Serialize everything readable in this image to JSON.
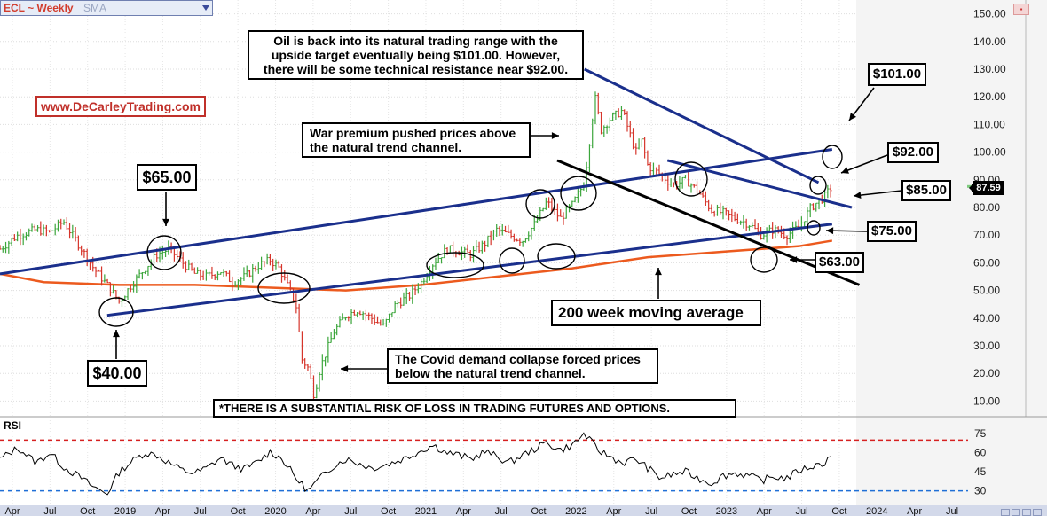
{
  "header": {
    "symbol": "ECL ~ Weekly",
    "indicator": "SMA",
    "url": "www.DeCarleyTrading.com",
    "rsi_label": "RSI",
    "last_price": "87.59"
  },
  "annotations": {
    "intro": [
      "Oil is back into its natural trading range with the",
      "upside target eventually being $101.00. However,",
      "there will be some technical resistance near $92.00."
    ],
    "war": [
      "War premium pushed prices above",
      "the natural trend channel."
    ],
    "covid": [
      "The Covid demand collapse forced prices",
      "below the natural trend channel."
    ],
    "ma": "200 week moving average",
    "risk": "*THERE IS A SUBSTANTIAL RISK OF LOSS IN TRADING FUTURES AND OPTIONS."
  },
  "price_labels": {
    "p65": "$65.00",
    "p40": "$40.00",
    "p101": "$101.00",
    "p92": "$92.00",
    "p85": "$85.00",
    "p75": "$75.00",
    "p63": "$63.00"
  },
  "colors": {
    "up_bar": "#3ca63c",
    "down_bar": "#d6352b",
    "trend_line": "#1a2f8c",
    "moving_average": "#ec5a1e",
    "counter_trend": "#000000",
    "rsi_upper": "#d62020",
    "rsi_lower": "#1f6fd6"
  },
  "chart_data": [
    {
      "type": "line",
      "title": "ECL ~ Weekly",
      "y_axis": {
        "ticks": [
          10,
          20,
          30,
          40,
          50,
          60,
          70,
          80,
          90,
          100,
          110,
          120,
          130,
          140,
          150
        ],
        "range": [
          5,
          155
        ]
      },
      "x_ticks": [
        "Apr",
        "Jul",
        "Oct",
        "2019",
        "Apr",
        "Jul",
        "Oct",
        "2020",
        "Apr",
        "Jul",
        "Oct",
        "2021",
        "Apr",
        "Jul",
        "Oct",
        "2022",
        "Apr",
        "Jul",
        "Oct",
        "2023",
        "Apr",
        "Jul",
        "Oct",
        "2024",
        "Apr",
        "Jul"
      ],
      "x_range": [
        2018.21,
        2024.62
      ],
      "series": [
        {
          "name": "price",
          "style": "weekly-bars",
          "x": [
            2018.21,
            2018.33,
            2018.45,
            2018.54,
            2018.63,
            2018.75,
            2018.83,
            2018.92,
            2019.0,
            2019.08,
            2019.17,
            2019.25,
            2019.33,
            2019.42,
            2019.5,
            2019.58,
            2019.67,
            2019.75,
            2019.83,
            2019.92,
            2020.0,
            2020.06,
            2020.12,
            2020.17,
            2020.21,
            2020.25,
            2020.29,
            2020.33,
            2020.42,
            2020.5,
            2020.58,
            2020.67,
            2020.75,
            2020.83,
            2020.92,
            2021.0,
            2021.08,
            2021.17,
            2021.25,
            2021.33,
            2021.42,
            2021.5,
            2021.58,
            2021.67,
            2021.75,
            2021.83,
            2021.92,
            2022.0,
            2022.08,
            2022.15,
            2022.19,
            2022.25,
            2022.33,
            2022.42,
            2022.46,
            2022.5,
            2022.58,
            2022.67,
            2022.75,
            2022.83,
            2022.92,
            2023.0,
            2023.08,
            2023.17,
            2023.25,
            2023.33,
            2023.42,
            2023.5,
            2023.58,
            2023.67,
            2023.72
          ],
          "y": [
            65,
            70,
            72,
            71,
            75,
            65,
            58,
            52,
            46,
            52,
            58,
            63,
            65,
            60,
            56,
            55,
            57,
            53,
            55,
            59,
            61,
            58,
            51,
            45,
            25,
            22,
            12,
            22,
            35,
            41,
            43,
            40,
            37,
            45,
            48,
            53,
            60,
            65,
            64,
            63,
            67,
            72,
            70,
            68,
            74,
            82,
            76,
            81,
            89,
            120,
            108,
            112,
            115,
            100,
            104,
            95,
            92,
            88,
            90,
            86,
            79,
            78,
            76,
            74,
            70,
            72,
            70,
            73,
            80,
            84,
            87.59
          ]
        },
        {
          "name": "200 week moving average",
          "x": [
            2018.21,
            2018.5,
            2019.0,
            2019.5,
            2020.0,
            2020.5,
            2021.0,
            2021.5,
            2022.0,
            2022.5,
            2023.0,
            2023.5,
            2023.72
          ],
          "y": [
            56,
            53,
            52,
            52,
            51,
            50,
            52,
            55,
            58,
            62,
            64,
            66,
            68
          ]
        },
        {
          "name": "RSI",
          "axis": "rsi",
          "ticks": [
            30,
            45,
            60,
            75
          ],
          "levels": [
            70,
            30
          ],
          "x": [
            2018.21,
            2018.33,
            2018.45,
            2018.54,
            2018.63,
            2018.75,
            2018.83,
            2018.92,
            2019.0,
            2019.08,
            2019.17,
            2019.25,
            2019.33,
            2019.42,
            2019.5,
            2019.58,
            2019.67,
            2019.75,
            2019.83,
            2019.92,
            2020.0,
            2020.08,
            2020.17,
            2020.25,
            2020.33,
            2020.42,
            2020.5,
            2020.58,
            2020.67,
            2020.75,
            2020.83,
            2020.92,
            2021.0,
            2021.08,
            2021.17,
            2021.25,
            2021.33,
            2021.42,
            2021.5,
            2021.58,
            2021.67,
            2021.75,
            2021.83,
            2021.92,
            2022.0,
            2022.08,
            2022.17,
            2022.25,
            2022.33,
            2022.42,
            2022.5,
            2022.58,
            2022.67,
            2022.75,
            2022.83,
            2022.92,
            2023.0,
            2023.08,
            2023.17,
            2023.25,
            2023.33,
            2023.42,
            2023.5,
            2023.58,
            2023.67,
            2023.72
          ],
          "y": [
            55,
            64,
            52,
            60,
            49,
            40,
            33,
            28,
            45,
            53,
            60,
            58,
            52,
            46,
            44,
            48,
            56,
            50,
            47,
            53,
            61,
            55,
            40,
            30,
            40,
            50,
            55,
            52,
            48,
            50,
            53,
            57,
            62,
            66,
            60,
            58,
            55,
            61,
            57,
            52,
            58,
            63,
            68,
            62,
            66,
            75,
            62,
            57,
            52,
            55,
            48,
            40,
            43,
            45,
            40,
            36,
            42,
            44,
            42,
            38,
            41,
            40,
            46,
            49,
            52,
            60
          ]
        }
      ],
      "trend_lines": [
        {
          "name": "lower channel",
          "from": [
            2018.92,
            41
          ],
          "to": [
            2023.72,
            74
          ]
        },
        {
          "name": "upper channel",
          "from": [
            2018.21,
            56
          ],
          "to": [
            2023.72,
            101
          ]
        },
        {
          "name": "falling resistance",
          "from": [
            2022.08,
            130
          ],
          "to": [
            2023.63,
            89
          ]
        },
        {
          "name": "secondary resistance",
          "from": [
            2022.63,
            97
          ],
          "to": [
            2023.85,
            80
          ]
        },
        {
          "name": "declining support",
          "from": [
            2021.9,
            97
          ],
          "to": [
            2023.9,
            52
          ]
        }
      ]
    }
  ]
}
